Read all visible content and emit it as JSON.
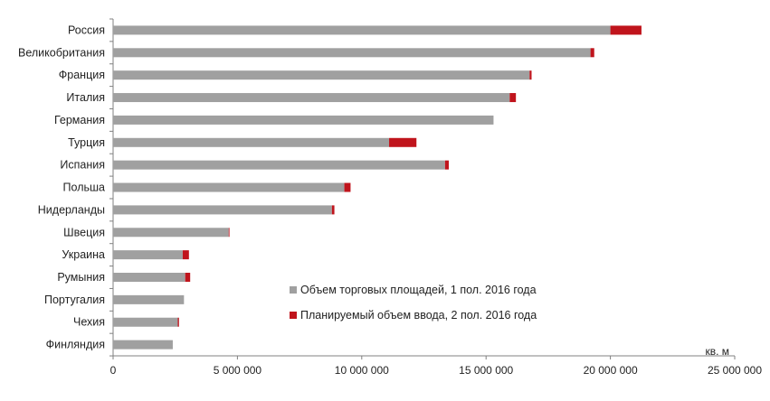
{
  "chart_data": {
    "type": "bar",
    "orientation": "horizontal",
    "stacked": true,
    "categories": [
      "Россия",
      "Великобритания",
      "Франция",
      "Италия",
      "Германия",
      "Турция",
      "Испания",
      "Польша",
      "Нидерланды",
      "Швеция",
      "Украина",
      "Румыния",
      "Португалия",
      "Чехия",
      "Финляндия"
    ],
    "series": [
      {
        "name": "Объем торговых площадей, 1 пол. 2016 года",
        "color": "#a0a0a0",
        "values": [
          20000000,
          19200000,
          16750000,
          15950000,
          15300000,
          11100000,
          13350000,
          9300000,
          8800000,
          4650000,
          2800000,
          2900000,
          2850000,
          2600000,
          2400000
        ]
      },
      {
        "name": "Планируемый объем ввода, 2 пол. 2016 года",
        "color": "#c0141c",
        "values": [
          1250000,
          150000,
          80000,
          250000,
          0,
          1100000,
          150000,
          250000,
          100000,
          30000,
          250000,
          200000,
          0,
          50000,
          0
        ]
      }
    ],
    "xlim": [
      0,
      25000000
    ],
    "xticks": [
      0,
      5000000,
      10000000,
      15000000,
      20000000,
      25000000
    ],
    "xtick_labels": [
      "0",
      "5 000 000",
      "10 000 000",
      "15 000 000",
      "20 000 000",
      "25 000 000"
    ],
    "unit_label": "кв. м",
    "grid": false,
    "legend_position": "bottom-center-inside"
  }
}
